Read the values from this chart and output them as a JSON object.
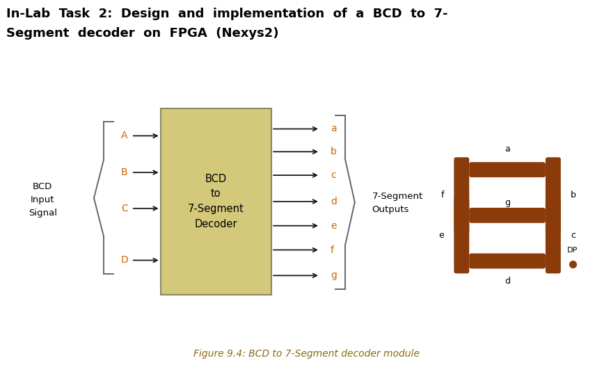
{
  "title_line1": "In-Lab  Task  2:  Design  and  implementation  of  a  BCD  to  7-",
  "title_line2": "Segment  decoder  on  FPGA  (Nexys2)",
  "caption": "Figure 9.4: BCD to 7-Segment decoder module",
  "box_color": "#d4c97a",
  "box_edge_color": "#888866",
  "seg_color": "#8B3A0A",
  "arrow_color": "#1a1a1a",
  "orange_label": "#CC6600",
  "brace_color": "#666666",
  "bg_color": "#ffffff",
  "inputs": [
    "A",
    "B",
    "C",
    "D"
  ],
  "outputs": [
    "a",
    "b",
    "c",
    "d",
    "e",
    "f",
    "g"
  ],
  "box_label": [
    "BCD",
    "to",
    "7-Segment",
    "Decoder"
  ],
  "bcd_input_label": "BCD\nInput\nSignal",
  "seg_output_label": "7-Segment\nOutputs"
}
